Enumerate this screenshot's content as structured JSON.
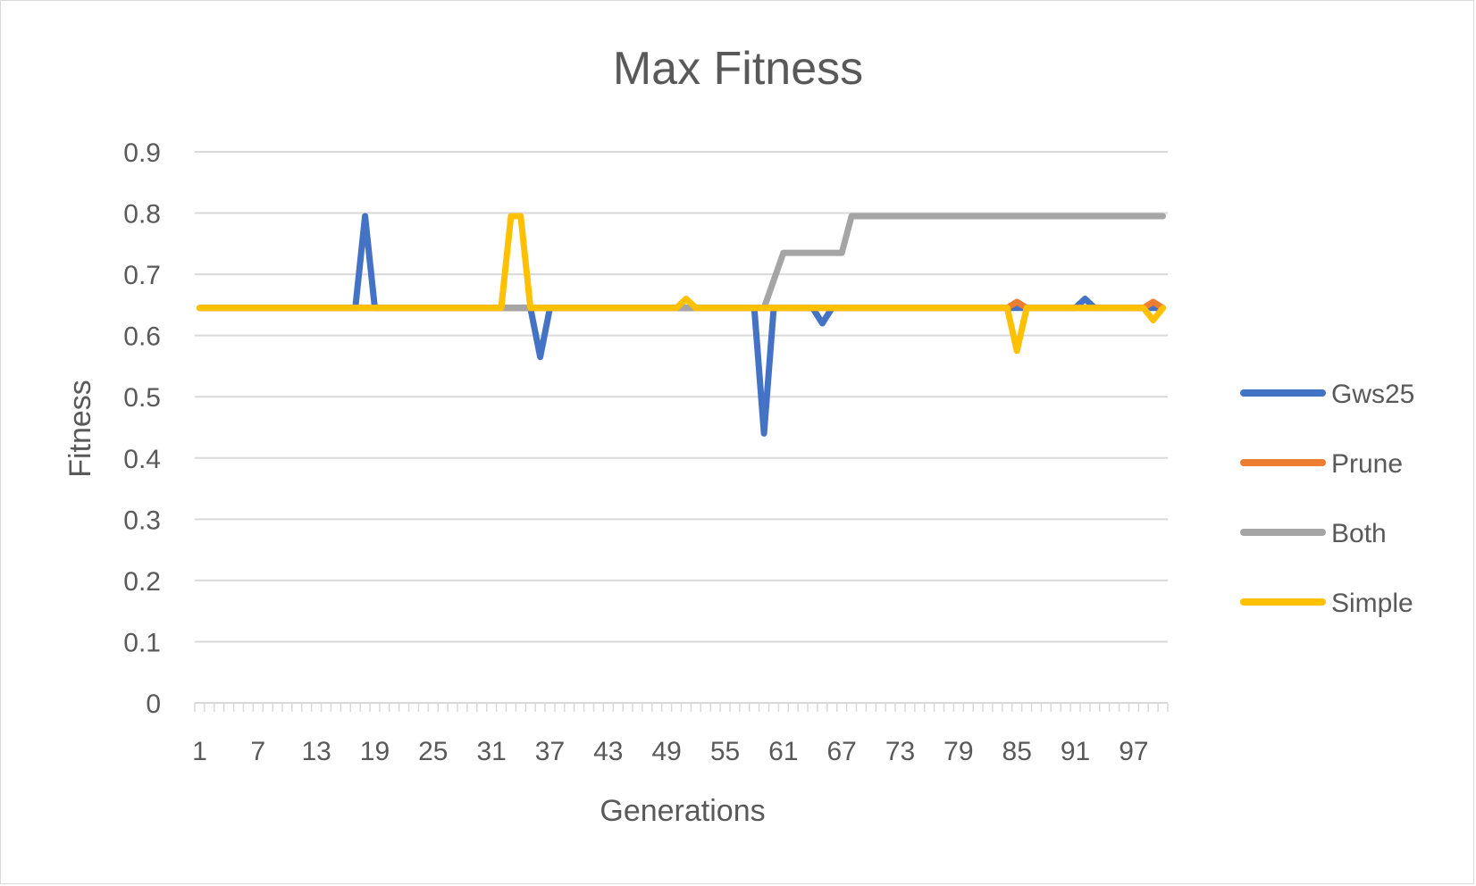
{
  "chart_data": {
    "type": "line",
    "title": "Max Fitness",
    "xlabel": "Generations",
    "ylabel": "Fitness",
    "ylim": [
      0,
      0.9
    ],
    "yticks": [
      "0",
      "0.1",
      "0.2",
      "0.3",
      "0.4",
      "0.5",
      "0.6",
      "0.7",
      "0.8",
      "0.9"
    ],
    "x_range": [
      1,
      100
    ],
    "xtick_labels": [
      "1",
      "7",
      "13",
      "19",
      "25",
      "31",
      "37",
      "43",
      "49",
      "55",
      "61",
      "67",
      "73",
      "79",
      "85",
      "91",
      "97"
    ],
    "grid": true,
    "legend_position": "right",
    "series": [
      {
        "name": "Gws25",
        "color": "#4472C4",
        "points": [
          [
            1,
            0.645
          ],
          [
            17,
            0.645
          ],
          [
            18,
            0.795
          ],
          [
            19,
            0.645
          ],
          [
            35,
            0.645
          ],
          [
            36,
            0.565
          ],
          [
            37,
            0.645
          ],
          [
            58,
            0.645
          ],
          [
            59,
            0.44
          ],
          [
            60,
            0.645
          ],
          [
            64,
            0.645
          ],
          [
            65,
            0.62
          ],
          [
            66,
            0.645
          ],
          [
            91,
            0.645
          ],
          [
            92,
            0.66
          ],
          [
            93,
            0.645
          ],
          [
            100,
            0.645
          ]
        ]
      },
      {
        "name": "Prune",
        "color": "#ED7D31",
        "points": [
          [
            1,
            0.645
          ],
          [
            84,
            0.645
          ],
          [
            85,
            0.655
          ],
          [
            86,
            0.645
          ],
          [
            98,
            0.645
          ],
          [
            99,
            0.655
          ],
          [
            100,
            0.645
          ]
        ]
      },
      {
        "name": "Both",
        "color": "#A5A5A5",
        "points": [
          [
            1,
            0.645
          ],
          [
            59,
            0.645
          ],
          [
            61,
            0.735
          ],
          [
            67,
            0.735
          ],
          [
            68,
            0.795
          ],
          [
            100,
            0.795
          ]
        ]
      },
      {
        "name": "Simple",
        "color": "#FFC000",
        "points": [
          [
            1,
            0.645
          ],
          [
            32,
            0.645
          ],
          [
            33,
            0.795
          ],
          [
            34,
            0.795
          ],
          [
            35,
            0.645
          ],
          [
            50,
            0.645
          ],
          [
            51,
            0.66
          ],
          [
            52,
            0.645
          ],
          [
            84,
            0.645
          ],
          [
            85,
            0.575
          ],
          [
            86,
            0.645
          ],
          [
            98,
            0.645
          ],
          [
            99,
            0.625
          ],
          [
            100,
            0.645
          ]
        ]
      }
    ]
  }
}
